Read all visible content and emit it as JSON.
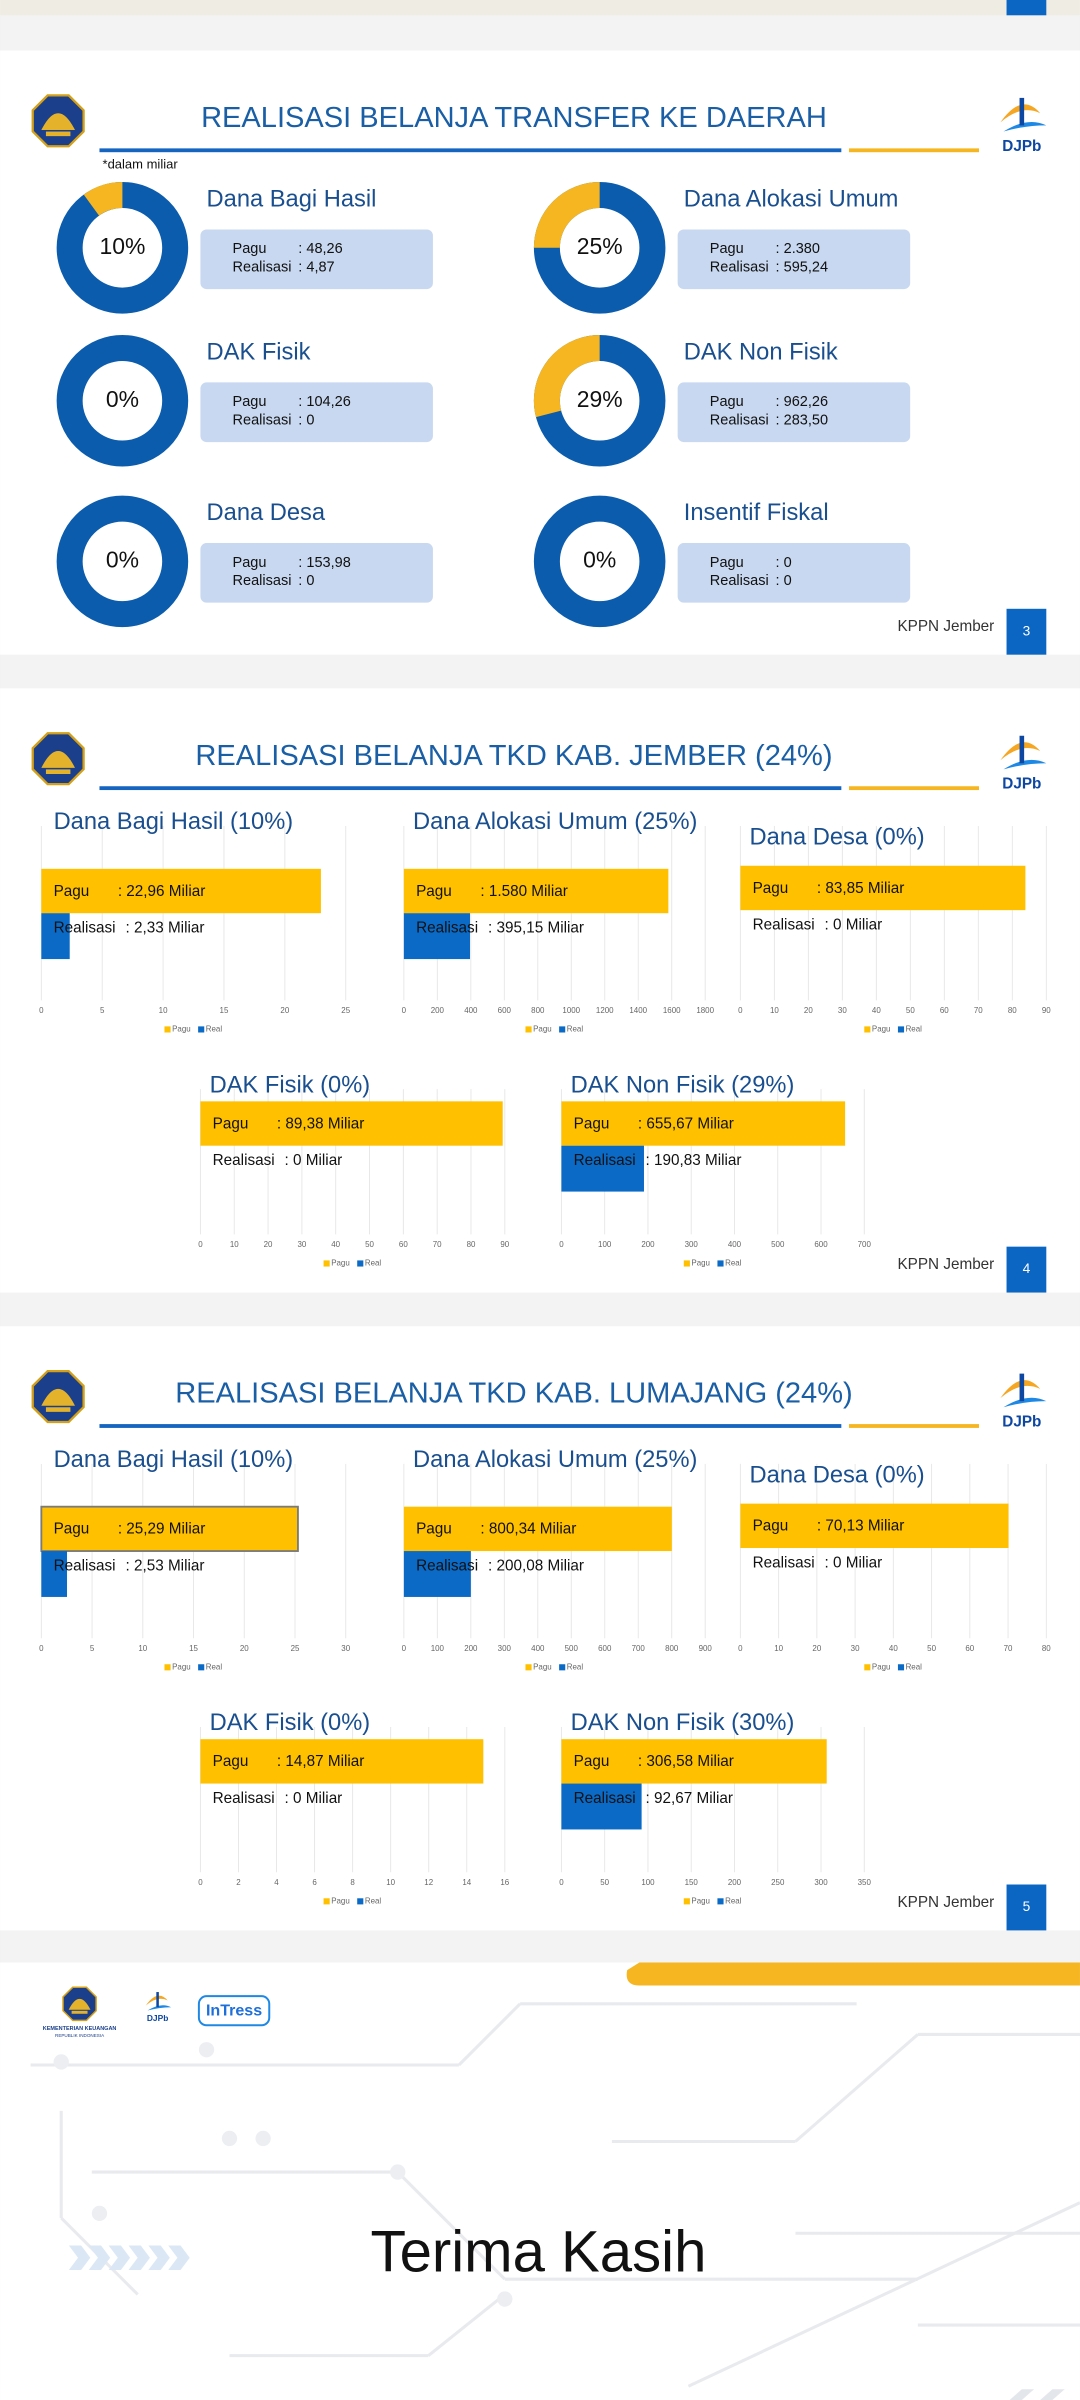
{
  "slides": [
    {
      "title": "REALISASI BELANJA TRANSFER KE DAERAH",
      "note": "*dalam miliar",
      "logo": "DJPb",
      "footer": "KPPN Jember",
      "page": "3",
      "donuts": [
        {
          "name": "Dana Bagi Hasil",
          "percent": 10,
          "percent_label": "10%",
          "pagu_label": "Pagu",
          "pagu": ": 48,26",
          "realisasi_label": "Realisasi",
          "realisasi": ": 4,87"
        },
        {
          "name": "Dana Alokasi Umum",
          "percent": 25,
          "percent_label": "25%",
          "pagu_label": "Pagu",
          "pagu": ": 2.380",
          "realisasi_label": "Realisasi",
          "realisasi": ": 595,24"
        },
        {
          "name": "DAK Fisik",
          "percent": 0,
          "percent_label": "0%",
          "pagu_label": "Pagu",
          "pagu": ": 104,26",
          "realisasi_label": "Realisasi",
          "realisasi": ": 0"
        },
        {
          "name": "DAK Non Fisik",
          "percent": 29,
          "percent_label": "29%",
          "pagu_label": "Pagu",
          "pagu": ": 962,26",
          "realisasi_label": "Realisasi",
          "realisasi": ": 283,50"
        },
        {
          "name": "Dana Desa",
          "percent": 0,
          "percent_label": "0%",
          "pagu_label": "Pagu",
          "pagu": ": 153,98",
          "realisasi_label": "Realisasi",
          "realisasi": ": 0"
        },
        {
          "name": "Insentif Fiskal",
          "percent": 0,
          "percent_label": "0%",
          "pagu_label": "Pagu",
          "pagu": ": 0",
          "realisasi_label": "Realisasi",
          "realisasi": ": 0"
        }
      ]
    },
    {
      "title": "REALISASI BELANJA TKD KAB. JEMBER (24%)",
      "logo": "DJPb",
      "footer": "KPPN Jember",
      "page": "4",
      "charts": [
        {
          "title": "Dana Bagi Hasil (10%)",
          "pagu_label": "Pagu",
          "pagu_text": ": 22,96 Miliar",
          "pagu": 22.96,
          "realisasi_label": "Realisasi",
          "realisasi_text": ": 2,33 Miliar",
          "realisasi": 2.33,
          "xlim": [
            0,
            25
          ],
          "xticks": [
            0,
            5,
            10,
            15,
            20,
            25
          ],
          "legend": [
            "Pagu",
            "Real"
          ]
        },
        {
          "title": "Dana Alokasi Umum (25%)",
          "pagu_label": "Pagu",
          "pagu_text": ": 1.580 Miliar",
          "pagu": 1580,
          "realisasi_label": "Realisasi",
          "realisasi_text": ": 395,15 Miliar",
          "realisasi": 395.15,
          "xlim": [
            0,
            1800
          ],
          "xticks": [
            0,
            200,
            400,
            600,
            800,
            1000,
            1200,
            1400,
            1600,
            1800
          ],
          "legend": [
            "Pagu",
            "Real"
          ]
        },
        {
          "title": "Dana Desa (0%)",
          "pagu_label": "Pagu",
          "pagu_text": ": 83,85 Miliar",
          "pagu": 83.85,
          "realisasi_label": "Realisasi",
          "realisasi_text": ": 0 Miliar",
          "realisasi": 0,
          "xlim": [
            0,
            90
          ],
          "xticks": [
            0,
            10,
            20,
            30,
            40,
            50,
            60,
            70,
            80,
            90
          ],
          "legend": [
            "Pagu",
            "Real"
          ]
        },
        {
          "title": "DAK Fisik (0%)",
          "pagu_label": "Pagu",
          "pagu_text": ": 89,38 Miliar",
          "pagu": 89.38,
          "realisasi_label": "Realisasi",
          "realisasi_text": ": 0 Miliar",
          "realisasi": 0,
          "xlim": [
            0,
            90
          ],
          "xticks": [
            0,
            10,
            20,
            30,
            40,
            50,
            60,
            70,
            80,
            90
          ],
          "legend": [
            "Pagu",
            "Real"
          ]
        },
        {
          "title": "DAK Non Fisik (29%)",
          "pagu_label": "Pagu",
          "pagu_text": ": 655,67 Miliar",
          "pagu": 655.67,
          "realisasi_label": "Realisasi",
          "realisasi_text": ": 190,83 Miliar",
          "realisasi": 190.83,
          "xlim": [
            0,
            700
          ],
          "xticks": [
            0,
            100,
            200,
            300,
            400,
            500,
            600,
            700
          ],
          "legend": [
            "Pagu",
            "Real"
          ]
        }
      ]
    },
    {
      "title": "REALISASI BELANJA TKD KAB. LUMAJANG (24%)",
      "logo": "DJPb",
      "footer": "KPPN Jember",
      "page": "5",
      "charts": [
        {
          "title": "Dana Bagi Hasil (10%)",
          "pagu_label": "Pagu",
          "pagu_text": ": 25,29 Miliar",
          "pagu": 25.29,
          "realisasi_label": "Realisasi",
          "realisasi_text": ": 2,53 Miliar",
          "realisasi": 2.53,
          "xlim": [
            0,
            30
          ],
          "xticks": [
            0,
            5,
            10,
            15,
            20,
            25,
            30
          ],
          "legend": [
            "Pagu",
            "Real"
          ]
        },
        {
          "title": "Dana Alokasi Umum (25%)",
          "pagu_label": "Pagu",
          "pagu_text": ": 800,34 Miliar",
          "pagu": 800.34,
          "realisasi_label": "Realisasi",
          "realisasi_text": ": 200,08 Miliar",
          "realisasi": 200.08,
          "xlim": [
            0,
            900
          ],
          "xticks": [
            0,
            100,
            200,
            300,
            400,
            500,
            600,
            700,
            800,
            900
          ],
          "legend": [
            "Pagu",
            "Real"
          ]
        },
        {
          "title": "Dana Desa (0%)",
          "pagu_label": "Pagu",
          "pagu_text": ": 70,13 Miliar",
          "pagu": 70.13,
          "realisasi_label": "Realisasi",
          "realisasi_text": ": 0 Miliar",
          "realisasi": 0,
          "xlim": [
            0,
            80
          ],
          "xticks": [
            0,
            10,
            20,
            30,
            40,
            50,
            60,
            70,
            80
          ],
          "legend": [
            "Pagu",
            "Real"
          ]
        },
        {
          "title": "DAK Fisik (0%)",
          "pagu_label": "Pagu",
          "pagu_text": ": 14,87 Miliar",
          "pagu": 14.87,
          "realisasi_label": "Realisasi",
          "realisasi_text": ": 0 Miliar",
          "realisasi": 0,
          "xlim": [
            0,
            16
          ],
          "xticks": [
            0,
            2,
            4,
            6,
            8,
            10,
            12,
            14,
            16
          ],
          "legend": [
            "Pagu",
            "Real"
          ]
        },
        {
          "title": "DAK Non Fisik (30%)",
          "pagu_label": "Pagu",
          "pagu_text": ": 306,58 Miliar",
          "pagu": 306.58,
          "realisasi_label": "Realisasi",
          "realisasi_text": ": 92,67 Miliar",
          "realisasi": 92.67,
          "xlim": [
            0,
            350
          ],
          "xticks": [
            0,
            50,
            100,
            150,
            200,
            250,
            300,
            350
          ],
          "legend": [
            "Pagu",
            "Real"
          ]
        }
      ]
    }
  ],
  "closing": {
    "title": "Terima Kasih",
    "ministry": "KEMENTERIAN KEUANGAN",
    "country": "REPUBLIK INDONESIA",
    "logo": "DJPb",
    "brand": "InTress"
  }
}
